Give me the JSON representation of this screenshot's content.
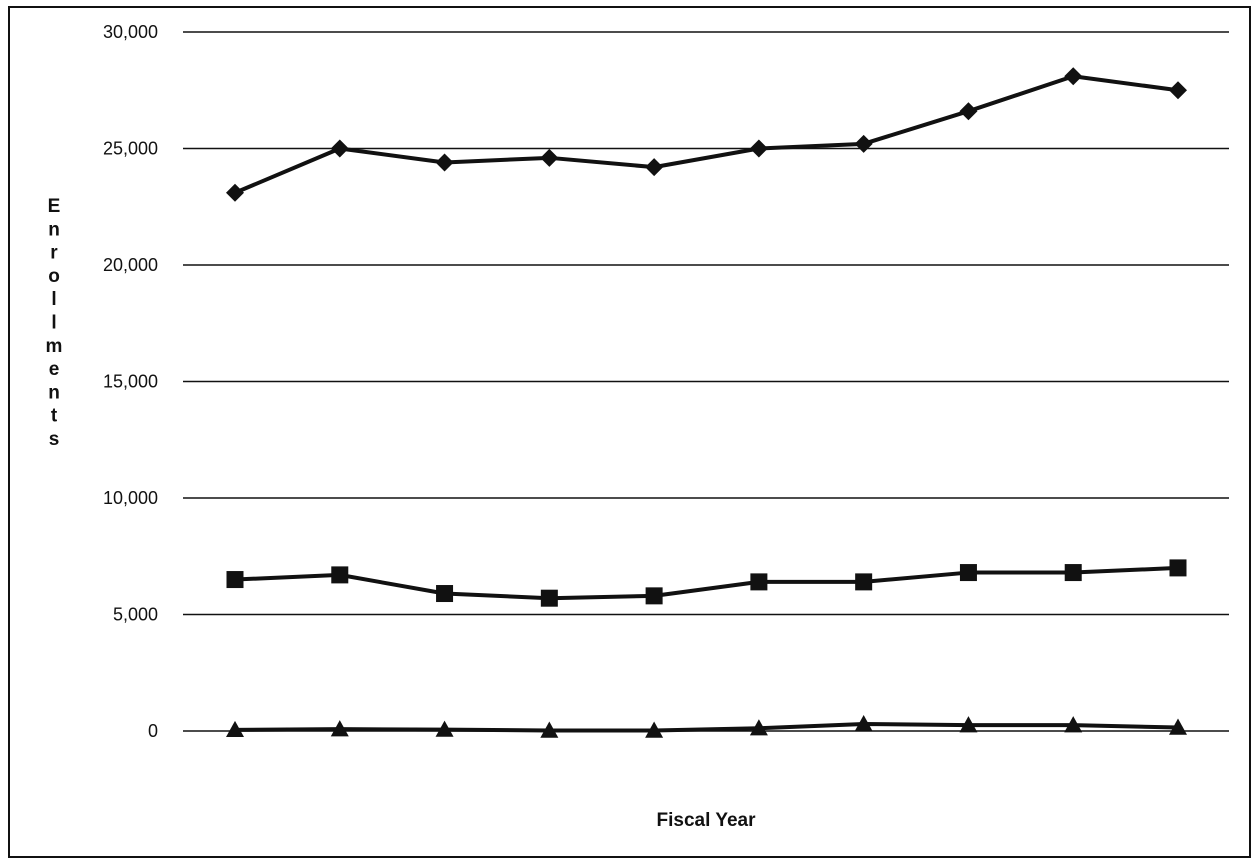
{
  "chart_data": {
    "type": "line",
    "title": "",
    "xlabel": "Fiscal Year",
    "ylabel": "Enrollments",
    "ylim": [
      0,
      30000
    ],
    "yticks": [
      "30,000",
      "25,000",
      "20,000",
      "15,000",
      "10,000",
      "5,000",
      "0"
    ],
    "ytick_values": [
      30000,
      25000,
      20000,
      15000,
      10000,
      5000,
      0
    ],
    "grid": true,
    "legend": "none",
    "x": [
      1,
      2,
      3,
      4,
      5,
      6,
      7,
      8,
      9,
      10
    ],
    "series": [
      {
        "marker": "diamond",
        "color": "#111111",
        "values": [
          23100,
          25000,
          24400,
          24600,
          24200,
          25000,
          25200,
          26600,
          28100,
          27500
        ]
      },
      {
        "marker": "square",
        "color": "#111111",
        "values": [
          6500,
          6700,
          5900,
          5700,
          5800,
          6400,
          6400,
          6800,
          6800,
          7000
        ]
      },
      {
        "marker": "triangle",
        "color": "#111111",
        "values": [
          50,
          80,
          60,
          20,
          20,
          120,
          300,
          250,
          250,
          150
        ]
      }
    ]
  }
}
